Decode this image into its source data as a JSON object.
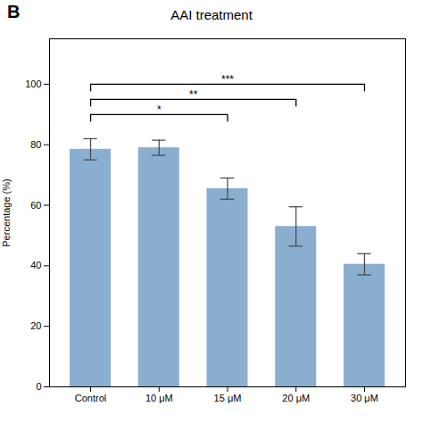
{
  "chart_data": {
    "type": "bar",
    "title": "AAI treatment",
    "panel_label": "B",
    "categories": [
      "Control",
      "10 μM",
      "15 μM",
      "20 μM",
      "30 μM"
    ],
    "values": [
      78.5,
      79.0,
      65.5,
      53.0,
      40.5
    ],
    "errors": [
      3.5,
      2.5,
      3.5,
      6.5,
      3.5
    ],
    "color": "#8aaecf",
    "ylabel": "Percentage (%)",
    "ylim": [
      0,
      115
    ],
    "yticks": [
      0,
      20,
      40,
      60,
      80,
      100
    ],
    "grid": false,
    "significance": [
      {
        "from": "Control",
        "to": "15 μM",
        "y": 90,
        "label": "*"
      },
      {
        "from": "Control",
        "to": "20 μM",
        "y": 95,
        "label": "**"
      },
      {
        "from": "Control",
        "to": "30 μM",
        "y": 100,
        "label": "***"
      }
    ]
  }
}
